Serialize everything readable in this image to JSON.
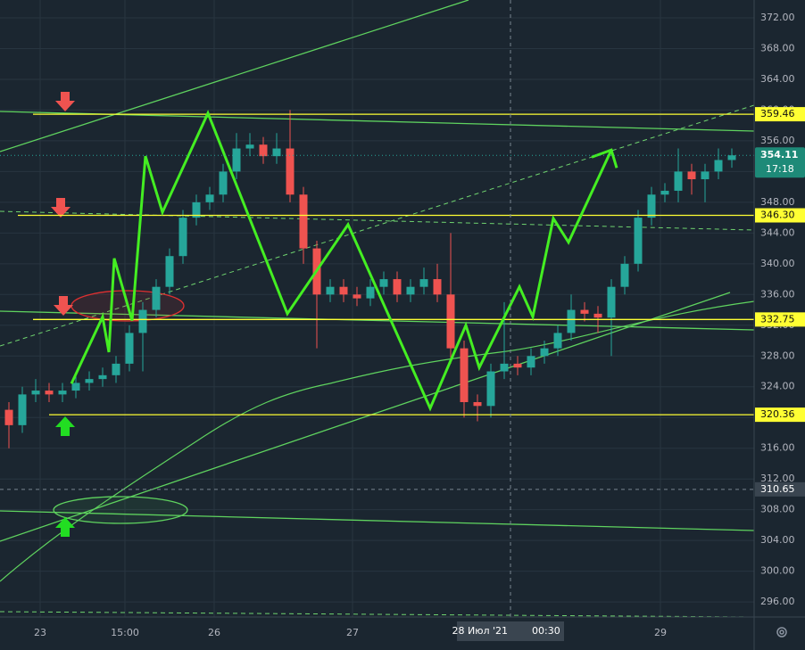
{
  "chart_data": {
    "type": "candlestick",
    "up_color": "#26a69a",
    "down_color": "#ef5350",
    "x": [
      2,
      5,
      8,
      11,
      14,
      17,
      20,
      23,
      26,
      29,
      32,
      35,
      38,
      41,
      44,
      47,
      50,
      53,
      56,
      59,
      62,
      65,
      68,
      71,
      74,
      77,
      80,
      83,
      86,
      89,
      92,
      95,
      98,
      101,
      104,
      107,
      110,
      113,
      116,
      119,
      122,
      125,
      128,
      131,
      134,
      137,
      140,
      143,
      146,
      149,
      152,
      155,
      158,
      161,
      164
    ],
    "open": [
      321,
      319,
      323,
      323.5,
      323,
      323.5,
      324.5,
      325,
      325.5,
      327,
      331,
      334,
      337,
      341,
      346,
      348,
      349,
      352,
      355,
      355.5,
      354,
      355,
      349,
      342,
      336,
      337,
      336,
      335.5,
      337,
      338,
      336,
      337,
      338,
      336,
      329,
      322,
      321.5,
      326,
      327,
      326.5,
      328,
      329,
      331,
      334,
      333.5,
      333,
      337,
      340,
      346,
      349,
      349.5,
      352,
      351,
      352,
      353.5
    ],
    "high": [
      322,
      324,
      325,
      324.5,
      324.5,
      325.5,
      326,
      326.5,
      328,
      332,
      335,
      338,
      342,
      347,
      349,
      350,
      353,
      357,
      357,
      356.5,
      357,
      360,
      350,
      343,
      338,
      338,
      337,
      338,
      339,
      339,
      338,
      339.5,
      340,
      344,
      330,
      323,
      327,
      335,
      328,
      329,
      330,
      332,
      336,
      335,
      334.5,
      338,
      341,
      347,
      350,
      350.5,
      355,
      353,
      353,
      355,
      355
    ],
    "low": [
      316,
      318,
      322,
      322,
      322,
      322.5,
      323.5,
      324,
      324.5,
      326,
      326,
      333,
      336,
      340,
      345,
      347,
      348,
      351,
      354,
      353,
      353,
      348,
      340,
      329,
      335,
      335,
      334.5,
      334.5,
      336,
      335,
      335,
      336,
      335,
      327,
      320,
      319.5,
      320,
      325,
      325.5,
      325.5,
      327,
      328,
      330,
      332.5,
      331,
      328,
      336,
      339,
      345,
      348,
      348,
      349,
      348,
      351,
      352.5
    ],
    "close": [
      319,
      323,
      323.5,
      323,
      323.5,
      324.5,
      325,
      325.5,
      327,
      331,
      334,
      337,
      341,
      346,
      348,
      349,
      352,
      355,
      355.5,
      354,
      355,
      349,
      342,
      336,
      337,
      336,
      335.5,
      337,
      338,
      336,
      337,
      338,
      336,
      329,
      322,
      321.5,
      326,
      327,
      326.5,
      328,
      329,
      331,
      334,
      333.5,
      333,
      337,
      340,
      346,
      349,
      349.5,
      352,
      351,
      352,
      353.5,
      354.11
    ],
    "xlim": [
      0,
      169
    ],
    "ylim": [
      294.04,
      374.32
    ],
    "xticks": [
      {
        "value": 9,
        "label": "23"
      },
      {
        "value": 28,
        "label": "15:00"
      },
      {
        "value": 48,
        "label": "26"
      },
      {
        "value": 79,
        "label": "27"
      },
      {
        "value": 148,
        "label": "29"
      }
    ],
    "yticks": [
      {
        "value": 296,
        "label": "296.00"
      },
      {
        "value": 300,
        "label": "300.00"
      },
      {
        "value": 304,
        "label": "304.00"
      },
      {
        "value": 308,
        "label": "308.00"
      },
      {
        "value": 312,
        "label": "312.00"
      },
      {
        "value": 316,
        "label": "316.00"
      },
      {
        "value": 320,
        "label": "320.00"
      },
      {
        "value": 324,
        "label": "324.00"
      },
      {
        "value": 328,
        "label": "328.00"
      },
      {
        "value": 332,
        "label": "332.00"
      },
      {
        "value": 336,
        "label": "336.00"
      },
      {
        "value": 340,
        "label": "340.00"
      },
      {
        "value": 344,
        "label": "344.00"
      },
      {
        "value": 348,
        "label": "348.00"
      },
      {
        "value": 352,
        "label": "352.00"
      },
      {
        "value": 356,
        "label": "356.00"
      },
      {
        "value": 360,
        "label": "360.00"
      },
      {
        "value": 364,
        "label": "364.00"
      },
      {
        "value": 368,
        "label": "368.00"
      },
      {
        "value": 372,
        "label": "372.00"
      }
    ],
    "grid": true,
    "levels": [
      {
        "value": 359.46,
        "label": "359.46",
        "from_x": 7.4
      },
      {
        "value": 346.3,
        "label": "346.30",
        "from_x": 4
      },
      {
        "value": 332.75,
        "label": "332.75",
        "from_x": 7.4
      },
      {
        "value": 320.36,
        "label": "320.36",
        "from_x": 11
      }
    ],
    "level_color": "#ffff33",
    "current_price": {
      "value": 354.11,
      "label": "354.11",
      "countdown": "17:18"
    },
    "crosshair": {
      "x": 114.4,
      "y": 310.65,
      "y_label": "310.65",
      "date_label": "28 Июл '21",
      "time_label": "00:30"
    },
    "zigzag": {
      "color": "#44ee22",
      "x": [
        16,
        23,
        24.4,
        25.6,
        29.6,
        32.6,
        36.4,
        46.6,
        64.4,
        78,
        96.4,
        104.4,
        107.4,
        116.4,
        119.4,
        124,
        127.4,
        137
      ],
      "values": [
        324.4,
        333.1,
        328.5,
        340.7,
        332.6,
        354.0,
        346.7,
        359.6,
        333.5,
        345.1,
        321.2,
        332.0,
        326.5,
        337.0,
        333.1,
        345.9,
        342.8,
        354.8
      ]
    }
  }
}
